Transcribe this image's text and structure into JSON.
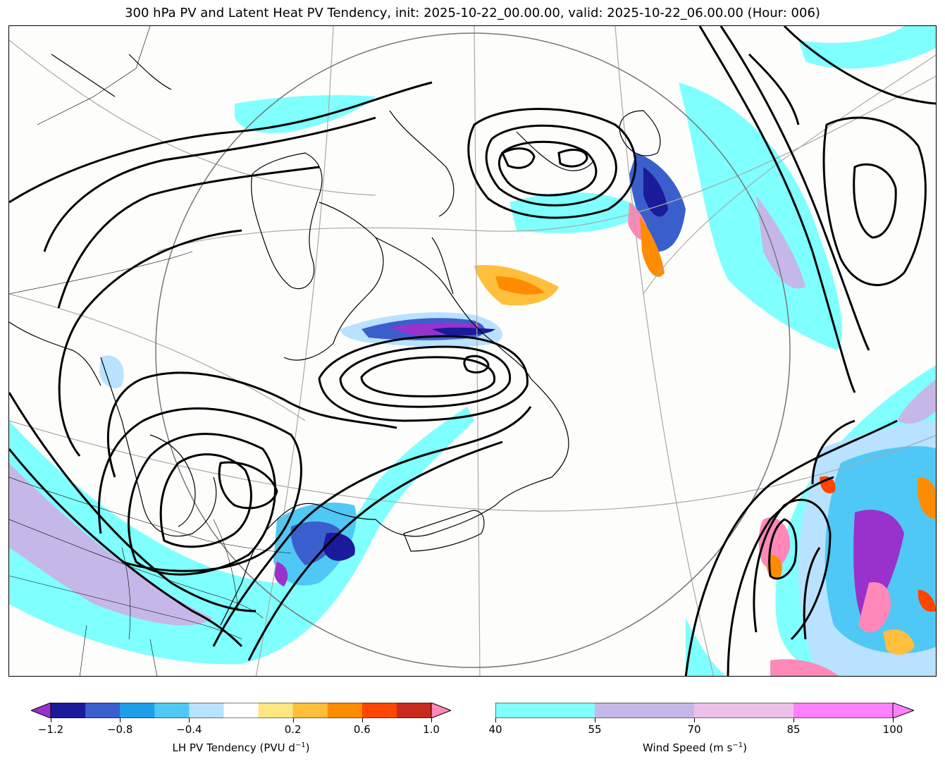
{
  "title": "300 hPa PV and Latent Heat PV Tendency, init: 2025-10-22_00.00.00, valid: 2025-10-22_06.00.00 (Hour: 006)",
  "lh_colorbar": {
    "label_main": "LH PV Tendency (PVU d",
    "label_exp": "−1",
    "label_tail": ")",
    "tick_labels": [
      "−1.2",
      "−0.8",
      "−0.4",
      "0.2",
      "0.6",
      "1.0"
    ],
    "colors": [
      "#9932cc",
      "#1a1a9a",
      "#3a5fcd",
      "#1c9fe8",
      "#4fc8f5",
      "#b8e2ff",
      "#ffffff",
      "#ffe680",
      "#ffbe3c",
      "#ff8c00",
      "#ff4500",
      "#c82a1e",
      "#ff88b8"
    ]
  },
  "ws_colorbar": {
    "label_main": "Wind Speed (m s",
    "label_exp": "−1",
    "label_tail": ")",
    "tick_labels": [
      "40",
      "55",
      "70",
      "85",
      "100"
    ],
    "colors": [
      "#80ffff",
      "#c5b8e8",
      "#ecc0e8",
      "#ff80ff"
    ]
  }
}
